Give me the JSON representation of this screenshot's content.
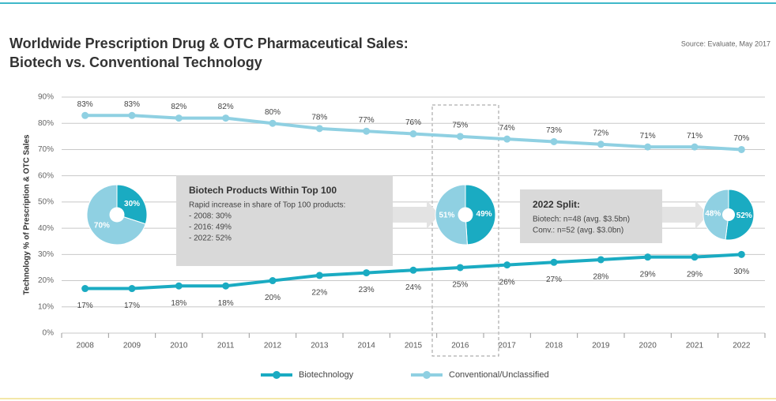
{
  "chart_data": {
    "type": "line",
    "title": [
      "Worldwide Prescription Drug & OTC Pharmaceutical Sales:",
      "Biotech vs. Conventional Technology"
    ],
    "source": "Source: Evaluate, May 2017",
    "y_label": "Technology % of Prescription & OTC Sales",
    "categories": [
      "2008",
      "2009",
      "2010",
      "2011",
      "2012",
      "2013",
      "2014",
      "2015",
      "2016",
      "2017",
      "2018",
      "2019",
      "2020",
      "2021",
      "2022"
    ],
    "series": [
      {
        "name": "Biotechnology",
        "color": "#1aabc2",
        "values": [
          17,
          17,
          18,
          18,
          20,
          22,
          23,
          24,
          25,
          26,
          27,
          28,
          29,
          29,
          30
        ],
        "value_labels": [
          "17%",
          "17%",
          "18%",
          "18%",
          "20%",
          "22%",
          "23%",
          "24%",
          "25%",
          "26%",
          "27%",
          "28%",
          "29%",
          "29%",
          "30%"
        ]
      },
      {
        "name": "Conventional/Unclassified",
        "color": "#8fd0e2",
        "values": [
          83,
          83,
          82,
          82,
          80,
          78,
          77,
          76,
          75,
          74,
          73,
          72,
          71,
          71,
          70
        ],
        "value_labels": [
          "83%",
          "83%",
          "82%",
          "82%",
          "80%",
          "78%",
          "77%",
          "76%",
          "75%",
          "74%",
          "73%",
          "72%",
          "71%",
          "71%",
          "70%"
        ]
      }
    ],
    "ylim": [
      0,
      90
    ],
    "yticks": [
      {
        "value": 0,
        "label": "0%"
      },
      {
        "value": 10,
        "label": "10%"
      },
      {
        "value": 20,
        "label": "20%"
      },
      {
        "value": 30,
        "label": "30%"
      },
      {
        "value": 40,
        "label": "40%"
      },
      {
        "value": 50,
        "label": "50%"
      },
      {
        "value": 60,
        "label": "60%"
      },
      {
        "value": 70,
        "label": "70%"
      },
      {
        "value": 80,
        "label": "80%"
      },
      {
        "value": 90,
        "label": "90%"
      }
    ],
    "grid": true,
    "pies": [
      {
        "values": [
          30,
          70
        ],
        "value_labels": [
          "30%",
          "70%"
        ]
      },
      {
        "values": [
          49,
          51
        ],
        "value_labels": [
          "49%",
          "51%"
        ]
      },
      {
        "values": [
          52,
          48
        ],
        "value_labels": [
          "52%",
          "48%"
        ]
      }
    ],
    "annotations": [
      {
        "title": "Biotech Products Within Top 100",
        "lines": [
          "Rapid increase in share of Top 100 products:",
          "- 2008: 30%",
          "- 2016: 49%",
          "- 2022: 52%"
        ]
      },
      {
        "title": "2022 Split:",
        "lines": [
          "Biotech: n=48 (avg. $3.5bn)",
          "Conv.: n=52 (avg. $3.0bn)"
        ]
      }
    ]
  }
}
